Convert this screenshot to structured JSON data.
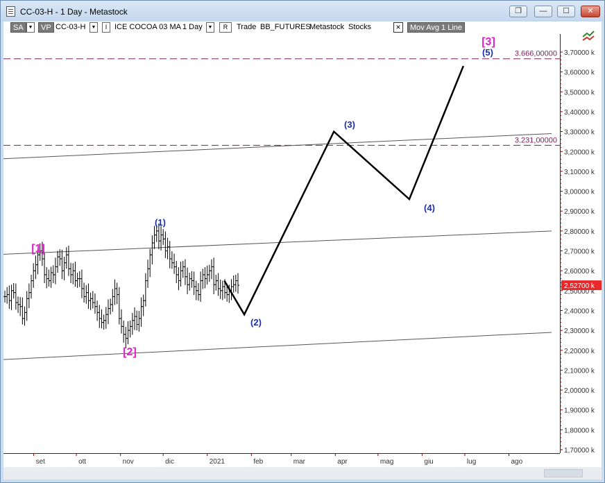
{
  "window": {
    "title": "CC-03-H - 1 Day - Metastock",
    "buttons": {
      "restore": "❐",
      "minimize": "—",
      "maximize": "☐",
      "close": "✕"
    }
  },
  "toolbar": {
    "sa": "SA",
    "vp": "VP",
    "symbol": "CC-03-H",
    "security_name": "ICE COCOA 03 MA",
    "periodicity": "1 Day",
    "r_label": "R",
    "mode": "Trade",
    "source": "BB_FUTURES",
    "app": "Metastock",
    "type": "Stocks",
    "x_label": "×",
    "indicator": "Mov Avg 1 Line"
  },
  "chart_data": {
    "type": "line",
    "y_axis": {
      "ticks": [
        "1,70000 k",
        "1,80000 k",
        "1,90000 k",
        "2,00000 k",
        "2,10000 k",
        "2,20000 k",
        "2,30000 k",
        "2,40000 k",
        "2,50000 k",
        "2,60000 k",
        "2,70000 k",
        "2,80000 k",
        "2,90000 k",
        "3,00000 k",
        "3,10000 k",
        "3,20000 k",
        "3,30000 k",
        "3,40000 k",
        "3,50000 k",
        "3,60000 k",
        "3,70000 k"
      ],
      "range": [
        1.7,
        3.7
      ]
    },
    "x_axis": {
      "labels": [
        "set",
        "ott",
        "nov",
        "dic",
        "2021",
        "feb",
        "mar",
        "apr",
        "mag",
        "giu",
        "lug",
        "ago"
      ]
    },
    "last_price": {
      "label": "2,52700 k",
      "value": 2.527,
      "color": "#e8282b"
    },
    "horizontal_levels": [
      {
        "label": "3.666,00000",
        "value": 3.666,
        "color": "#7a1f5c"
      },
      {
        "label": "3.231,00000",
        "value": 3.231,
        "color": "#7a1f5c"
      }
    ],
    "wave_labels": {
      "w1_big": "[1]",
      "w2_big": "[2]",
      "w3_big": "[3]",
      "w1": "(1)",
      "w2": "(2)",
      "w3": "(3)",
      "w4": "(4)",
      "w5": "(5)"
    },
    "projection": [
      {
        "date": "2021-01-13",
        "price": 2.55
      },
      {
        "date": "2021-01-27",
        "price": 2.38
      },
      {
        "date": "2021-03-31",
        "price": 3.3
      },
      {
        "date": "2021-05-23",
        "price": 2.96
      },
      {
        "date": "2021-06-30",
        "price": 3.63
      }
    ],
    "ohlc_closes": [
      2.47,
      2.48,
      2.45,
      2.5,
      2.49,
      2.44,
      2.43,
      2.42,
      2.36,
      2.39,
      2.46,
      2.49,
      2.55,
      2.6,
      2.63,
      2.68,
      2.7,
      2.66,
      2.58,
      2.56,
      2.55,
      2.59,
      2.58,
      2.62,
      2.67,
      2.66,
      2.6,
      2.64,
      2.68,
      2.61,
      2.58,
      2.6,
      2.55,
      2.56,
      2.56,
      2.51,
      2.47,
      2.49,
      2.45,
      2.46,
      2.44,
      2.42,
      2.39,
      2.36,
      2.34,
      2.35,
      2.38,
      2.41,
      2.43,
      2.47,
      2.51,
      2.48,
      2.36,
      2.32,
      2.28,
      2.26,
      2.3,
      2.32,
      2.35,
      2.37,
      2.33,
      2.36,
      2.42,
      2.45,
      2.55,
      2.61,
      2.68,
      2.74,
      2.78,
      2.8,
      2.75,
      2.78,
      2.76,
      2.7,
      2.72,
      2.66,
      2.64,
      2.62,
      2.58,
      2.55,
      2.6,
      2.62,
      2.57,
      2.53,
      2.56,
      2.55,
      2.52,
      2.5,
      2.48,
      2.55,
      2.58,
      2.56,
      2.58,
      2.6,
      2.62,
      2.53,
      2.55,
      2.51,
      2.5,
      2.52,
      2.49,
      2.48,
      2.5,
      2.52,
      2.53,
      2.55,
      2.527
    ],
    "trendlines": [
      {
        "name": "upper",
        "from_date": "2020-08-01",
        "from_price": 2.68,
        "to_date": "2021-08-31",
        "to_price": 2.8
      },
      {
        "name": "lower",
        "from_date": "2020-08-01",
        "from_price": 2.15,
        "to_date": "2021-08-31",
        "to_price": 2.29
      },
      {
        "name": "top",
        "from_date": "2020-08-01",
        "from_price": 3.16,
        "to_date": "2021-08-31",
        "to_price": 3.29
      }
    ]
  }
}
